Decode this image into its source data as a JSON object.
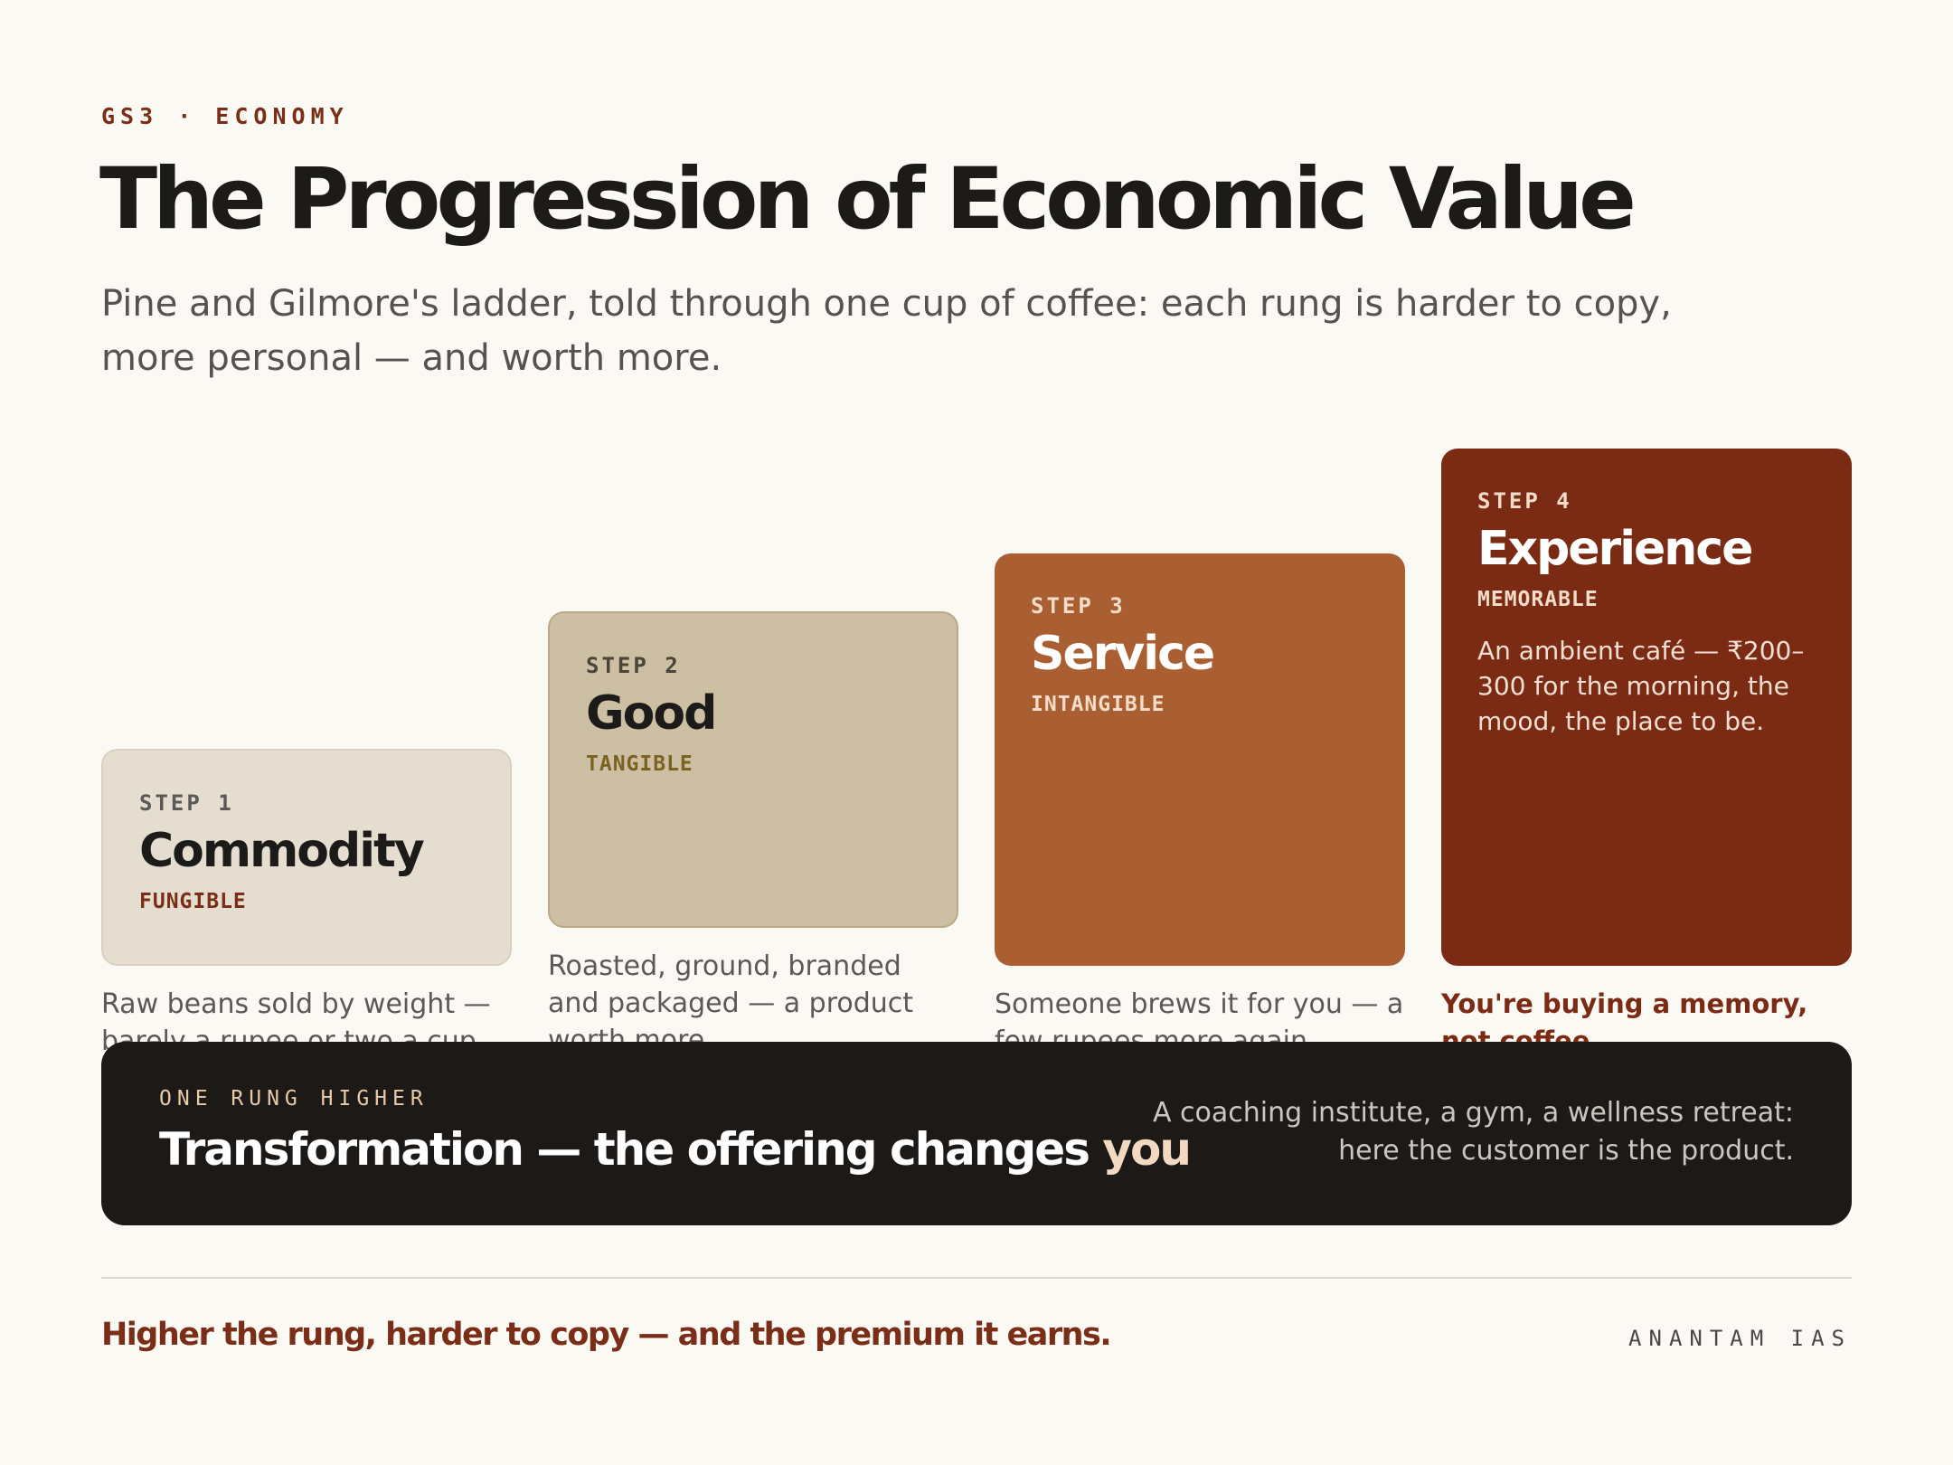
{
  "kicker": "GS3 · ECONOMY",
  "title": "The Progression of Economic Value",
  "subtitle": "Pine and Gilmore's ladder, told through one cup of coffee: each rung is harder to copy, more personal — and worth more.",
  "steps": [
    {
      "step": "STEP 1",
      "name": "Commodity",
      "tag": "FUNGIBLE",
      "caption": "Raw beans sold by weight — barely a rupee or two a cup.",
      "bg": "#e5ddd0",
      "fg": "#1c1b19",
      "step_color": "#5b5955",
      "tag_color": "#7a2e17"
    },
    {
      "step": "STEP 2",
      "name": "Good",
      "tag": "TANGIBLE",
      "caption": "Roasted, ground, branded and packaged — a product worth more.",
      "bg": "#cdbfa3",
      "fg": "#1c1b19",
      "step_color": "#4a4536",
      "tag_color": "#7a6220"
    },
    {
      "step": "STEP 3",
      "name": "Service",
      "tag": "INTANGIBLE",
      "caption": "Someone brews it for you — a few rupees more again.",
      "bg": "#a95f31",
      "fg": "#ffffff",
      "step_color": "#f3dcc9",
      "tag_color": "#f3dcc9"
    },
    {
      "step": "STEP 4",
      "name": "Experience",
      "tag": "MEMORABLE",
      "description": "An ambient café — ₹200–300 for the morning, the mood, the place to be.",
      "caption": "You're buying a memory, not coffee.",
      "bg": "#7b2b14",
      "fg": "#ffffff",
      "step_color": "#f3dcc9",
      "tag_color": "#f3dcc9"
    }
  ],
  "band": {
    "kicker": "ONE RUNG HIGHER",
    "title_main": "Transformation — the offering changes ",
    "title_highlight": "you",
    "note": "A coaching institute, a gym, a wellness retreat: here the customer is the product."
  },
  "tagline": "Higher the rung, harder to copy — and the premium it earns.",
  "brand": "ANANTAM IAS"
}
